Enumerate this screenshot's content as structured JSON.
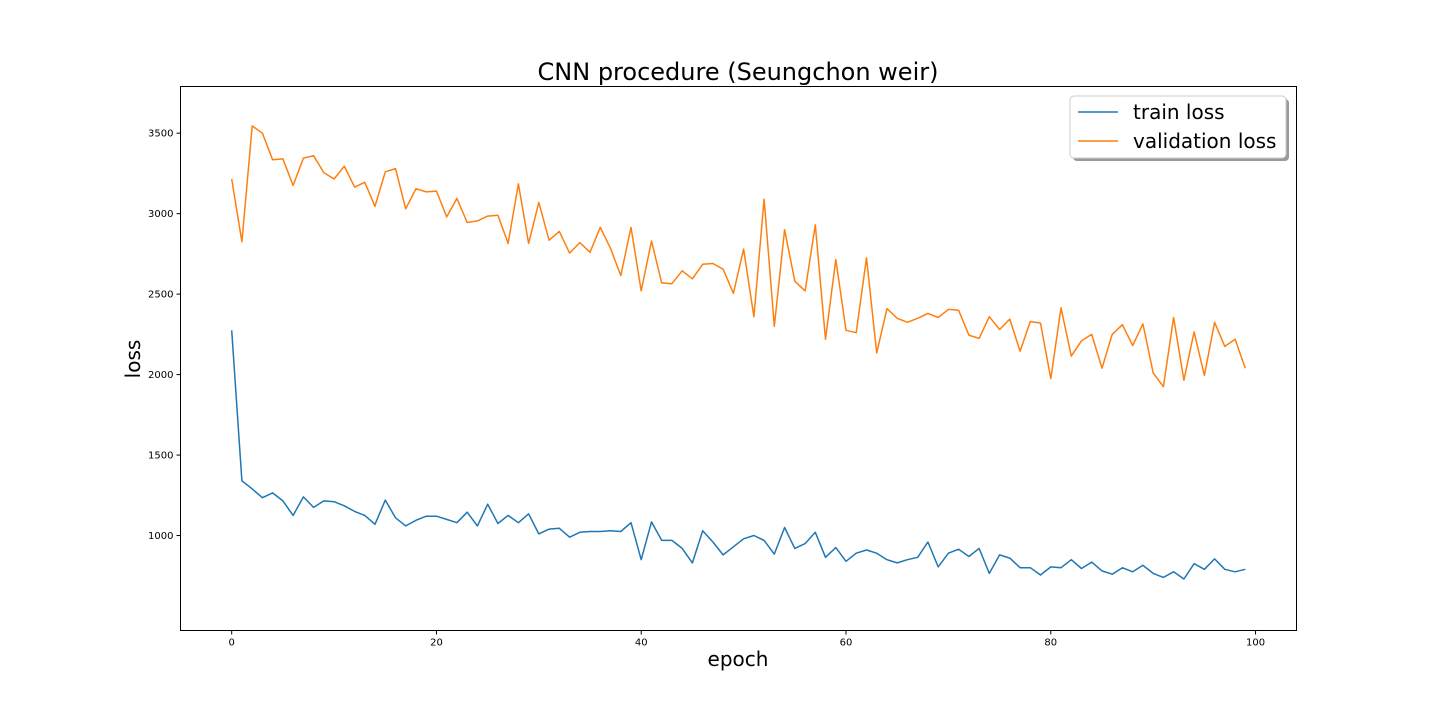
{
  "chart_data": {
    "type": "line",
    "title": "CNN procedure (Seungchon weir)",
    "xlabel": "epoch",
    "ylabel": "loss",
    "xlim": [
      -5,
      104
    ],
    "ylim": [
      410,
      3790
    ],
    "xticks": [
      0,
      20,
      40,
      60,
      80,
      100
    ],
    "yticks": [
      1000,
      1500,
      2000,
      2500,
      3000,
      3500
    ],
    "legend_position": "top-right",
    "grid": false,
    "series": [
      {
        "name": "train loss",
        "color": "#1f77b4",
        "x": [
          0,
          1,
          2,
          3,
          4,
          5,
          6,
          7,
          8,
          9,
          10,
          11,
          12,
          13,
          14,
          15,
          16,
          17,
          18,
          19,
          20,
          21,
          22,
          23,
          24,
          25,
          26,
          27,
          28,
          29,
          30,
          31,
          32,
          33,
          34,
          35,
          36,
          37,
          38,
          39,
          40,
          41,
          42,
          43,
          44,
          45,
          46,
          47,
          48,
          49,
          50,
          51,
          52,
          53,
          54,
          55,
          56,
          57,
          58,
          59,
          60,
          61,
          62,
          63,
          64,
          65,
          66,
          67,
          68,
          69,
          70,
          71,
          72,
          73,
          74,
          75,
          76,
          77,
          78,
          79,
          80,
          81,
          82,
          83,
          84,
          85,
          86,
          87,
          88,
          89,
          90,
          91,
          92,
          93,
          94,
          95,
          96,
          97,
          98,
          99
        ],
        "values": [
          2275,
          1340,
          1290,
          1235,
          1265,
          1215,
          1125,
          1240,
          1175,
          1215,
          1210,
          1185,
          1150,
          1125,
          1070,
          1220,
          1110,
          1060,
          1095,
          1120,
          1120,
          1100,
          1080,
          1145,
          1060,
          1195,
          1075,
          1125,
          1080,
          1135,
          1010,
          1040,
          1045,
          990,
          1020,
          1025,
          1025,
          1030,
          1025,
          1080,
          850,
          1085,
          970,
          970,
          920,
          830,
          1030,
          960,
          880,
          930,
          980,
          1000,
          970,
          885,
          1050,
          920,
          950,
          1020,
          865,
          925,
          840,
          890,
          910,
          890,
          850,
          830,
          850,
          865,
          960,
          805,
          890,
          915,
          870,
          920,
          765,
          880,
          860,
          800,
          800,
          755,
          805,
          800,
          850,
          795,
          835,
          780,
          760,
          800,
          775,
          815,
          765,
          740,
          775,
          730,
          825,
          790,
          855,
          790,
          775,
          790
        ]
      },
      {
        "name": "validation loss",
        "color": "#ff7f0e",
        "x": [
          0,
          1,
          2,
          3,
          4,
          5,
          6,
          7,
          8,
          9,
          10,
          11,
          12,
          13,
          14,
          15,
          16,
          17,
          18,
          19,
          20,
          21,
          22,
          23,
          24,
          25,
          26,
          27,
          28,
          29,
          30,
          31,
          32,
          33,
          34,
          35,
          36,
          37,
          38,
          39,
          40,
          41,
          42,
          43,
          44,
          45,
          46,
          47,
          48,
          49,
          50,
          51,
          52,
          53,
          54,
          55,
          56,
          57,
          58,
          59,
          60,
          61,
          62,
          63,
          64,
          65,
          66,
          67,
          68,
          69,
          70,
          71,
          72,
          73,
          74,
          75,
          76,
          77,
          78,
          79,
          80,
          81,
          82,
          83,
          84,
          85,
          86,
          87,
          88,
          89,
          90,
          91,
          92,
          93,
          94,
          95,
          96,
          97,
          98,
          99
        ],
        "values": [
          3215,
          2825,
          3545,
          3500,
          3335,
          3340,
          3175,
          3345,
          3360,
          3255,
          3215,
          3295,
          3165,
          3195,
          3045,
          3260,
          3280,
          3030,
          3155,
          3135,
          3140,
          2980,
          3095,
          2945,
          2955,
          2985,
          2990,
          2815,
          3185,
          2815,
          3070,
          2835,
          2890,
          2755,
          2820,
          2760,
          2915,
          2785,
          2615,
          2915,
          2520,
          2830,
          2570,
          2565,
          2645,
          2595,
          2685,
          2690,
          2655,
          2505,
          2780,
          2360,
          3090,
          2300,
          2900,
          2580,
          2520,
          2930,
          2220,
          2715,
          2275,
          2260,
          2725,
          2135,
          2410,
          2350,
          2325,
          2350,
          2380,
          2355,
          2405,
          2400,
          2245,
          2225,
          2360,
          2280,
          2345,
          2145,
          2330,
          2320,
          1975,
          2415,
          2115,
          2210,
          2250,
          2040,
          2250,
          2310,
          2180,
          2315,
          2010,
          1925,
          2355,
          1965,
          2265,
          1995,
          2325,
          2175,
          2220,
          2040
        ]
      }
    ]
  }
}
